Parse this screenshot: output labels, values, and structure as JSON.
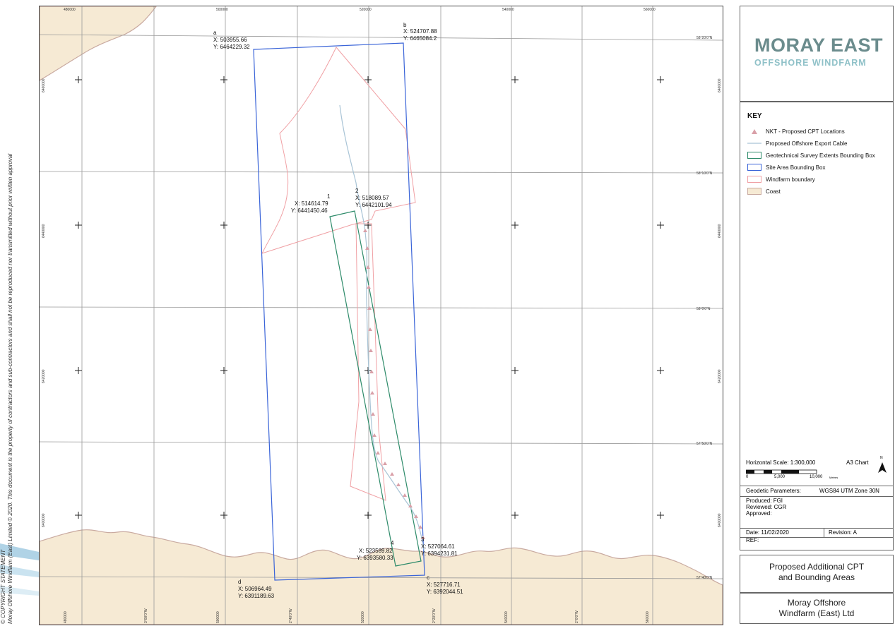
{
  "top_axis_labels": [
    "480000",
    "500000",
    "520000",
    "540000",
    "560000"
  ],
  "bottom_axis_labels": [
    "480000",
    "3°00'0\"W",
    "500000",
    "2°40'0\"W",
    "520000",
    "2°20'0\"W",
    "540000",
    "2°0'0\"W",
    "560000"
  ],
  "left_axis_labels": [
    "6460000",
    "6440000",
    "6420000",
    "6400000"
  ],
  "right_axis_labels": [
    "58°20'0\"N",
    "6460000",
    "58°10'0\"N",
    "6440000",
    "58°0'0\"N",
    "6420000",
    "57°50'0\"N",
    "6400000",
    "57°40'0\"N"
  ],
  "map_points": {
    "a": {
      "id": "a",
      "x": "X: 503955.66",
      "y": "Y: 6464229.32"
    },
    "b": {
      "id": "b",
      "x": "X: 524707.88",
      "y": "Y: 6465084.2"
    },
    "c": {
      "id": "c",
      "x": "X: 527716.71",
      "y": "Y: 6392044.51"
    },
    "d": {
      "id": "d",
      "x": "X: 506964.49",
      "y": "Y: 6391189.63"
    },
    "p1": {
      "id": "1",
      "x": "X: 514614.79",
      "y": "Y: 6441450.46"
    },
    "p2": {
      "id": "2",
      "x": "X: 518089.57",
      "y": "Y: 6442101.94"
    },
    "p3": {
      "id": "3",
      "x": "X: 527064.61",
      "y": "Y: 6394231.81"
    },
    "p4": {
      "id": "4",
      "x": "X: 523589.82",
      "y": "Y: 6393580.33"
    }
  },
  "copyright": {
    "line1": "© COPYRIGHT STATEMENT",
    "line2": "Moray Offshore Windfarm (East) Limited © 2020. This document is the property of contractors and sub-contractors and shall not be reproduced nor transmitted without prior written approval"
  },
  "logo": {
    "main": "MORAY EAST",
    "sub": "OFFSHORE WINDFARM"
  },
  "key": {
    "title": "KEY",
    "items": [
      {
        "label": "NKT - Proposed CPT Locations",
        "symbol": "triangle-icon",
        "color": "#d9a0a8"
      },
      {
        "label": "Proposed Offshore Export Cable",
        "symbol": "line",
        "color": "#a9c4d6"
      },
      {
        "label": "Geotechnical Survey Extents Bounding Box",
        "symbol": "box",
        "color": "#2e8b6a"
      },
      {
        "label": "Site Area Bounding Box",
        "symbol": "box",
        "color": "#3a64d8"
      },
      {
        "label": "Windfarm boundary",
        "symbol": "box",
        "color": "#f0a0a4"
      },
      {
        "label": "Coast",
        "symbol": "fill",
        "color": "#f6ead4"
      }
    ]
  },
  "scale": {
    "horizontal_label": "Horizontal Scale:",
    "horizontal_value": "1:300,000",
    "sheet": "A3 Chart",
    "tick0": "0",
    "tick1": "5,000",
    "tick2": "10,000",
    "unit": "Metres",
    "north": "N"
  },
  "geodetic": {
    "label": "Geodetic Parameters:",
    "value": "WGS84 UTM Zone 30N"
  },
  "info": {
    "produced": "Produced: FGI",
    "reviewed": "Reviewed: CGR",
    "approved": "Approved:"
  },
  "date": {
    "date": "Date: 11/02/2020",
    "revision": "Revision: A",
    "ref": "REF:"
  },
  "title": {
    "line1": "Proposed Additional CPT",
    "line2": "and Bounding Areas"
  },
  "company": {
    "line1": "Moray Offshore",
    "line2": "Windfarm (East) Ltd"
  },
  "colors": {
    "site_box": "#3a64d8",
    "geotech_box": "#2e8b6a",
    "windfarm": "#f0a0a4",
    "coast_fill": "#f6ead4",
    "coast_line": "#c9aaa0",
    "cable": "#a9c4d6",
    "cpt": "#d9a0a8",
    "grid": "#9a9a9a"
  }
}
